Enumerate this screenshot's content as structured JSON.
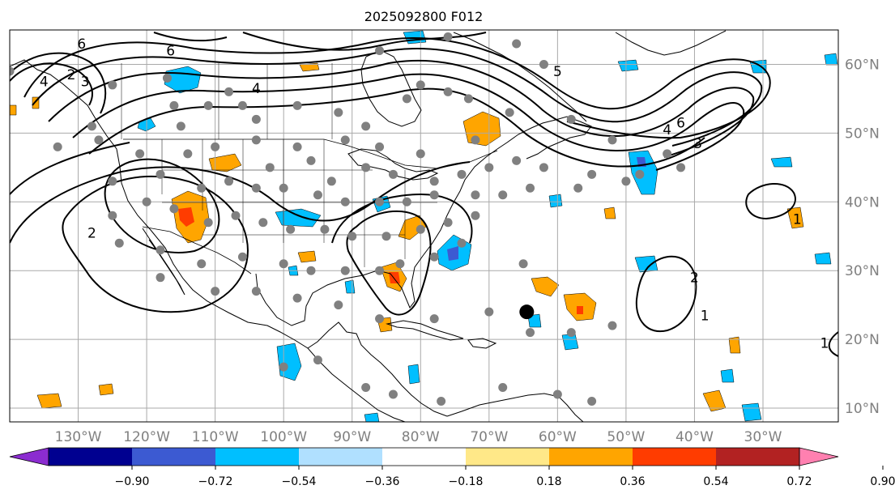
{
  "title": "2025092800 F012",
  "map": {
    "lon_range": [
      -140,
      -19
    ],
    "lat_range": [
      8,
      65
    ],
    "lon_ticks": [
      {
        "value": -130,
        "label": "130°W"
      },
      {
        "value": -120,
        "label": "120°W"
      },
      {
        "value": -110,
        "label": "110°W"
      },
      {
        "value": -100,
        "label": "100°W"
      },
      {
        "value": -90,
        "label": "90°W"
      },
      {
        "value": -80,
        "label": "80°W"
      },
      {
        "value": -70,
        "label": "70°W"
      },
      {
        "value": -60,
        "label": "60°W"
      },
      {
        "value": -50,
        "label": "50°W"
      },
      {
        "value": -40,
        "label": "40°W"
      },
      {
        "value": -30,
        "label": "30°W"
      }
    ],
    "lat_ticks": [
      {
        "value": 60,
        "label": "60°N"
      },
      {
        "value": 50,
        "label": "50°N"
      },
      {
        "value": 40,
        "label": "40°N"
      },
      {
        "value": 30,
        "label": "30°N"
      },
      {
        "value": 20,
        "label": "20°N"
      },
      {
        "value": 10,
        "label": "10°N"
      }
    ],
    "grid": true,
    "grid_color": "#a9a9a9",
    "contour_labels": [
      {
        "text": "6",
        "lon": -129.5,
        "lat": 63.0
      },
      {
        "text": "6",
        "lon": -116.5,
        "lat": 62.0
      },
      {
        "text": "4",
        "lon": -135.0,
        "lat": 57.5
      },
      {
        "text": "2",
        "lon": -131.0,
        "lat": 58.5
      },
      {
        "text": "3",
        "lon": -129.0,
        "lat": 57.5
      },
      {
        "text": "4",
        "lon": -104.0,
        "lat": 56.5
      },
      {
        "text": "5",
        "lon": -60.0,
        "lat": 59.0
      },
      {
        "text": "6",
        "lon": -42.0,
        "lat": 51.5
      },
      {
        "text": "4",
        "lon": -44.0,
        "lat": 50.5
      },
      {
        "text": "3",
        "lon": -39.5,
        "lat": 48.5
      },
      {
        "text": "2",
        "lon": -128.0,
        "lat": 35.5
      },
      {
        "text": "2",
        "lon": -40.0,
        "lat": 29.0
      },
      {
        "text": "1",
        "lon": -25.0,
        "lat": 37.5
      },
      {
        "text": "1",
        "lon": -38.5,
        "lat": 23.5
      },
      {
        "text": "1",
        "lon": -21.0,
        "lat": 19.5
      }
    ],
    "stations_gray": [
      [
        -140,
        59
      ],
      [
        -125,
        57
      ],
      [
        -117,
        58
      ],
      [
        -108,
        56
      ],
      [
        -128,
        51
      ],
      [
        -116,
        54
      ],
      [
        -115,
        51
      ],
      [
        -111,
        54
      ],
      [
        -106,
        54
      ],
      [
        -104,
        52
      ],
      [
        -98,
        54
      ],
      [
        -92,
        53
      ],
      [
        -88,
        51
      ],
      [
        -82,
        55
      ],
      [
        -80,
        57
      ],
      [
        -76,
        56
      ],
      [
        -73,
        55
      ],
      [
        -66,
        63
      ],
      [
        -62,
        60
      ],
      [
        -86,
        62
      ],
      [
        -76,
        64
      ],
      [
        -67,
        53
      ],
      [
        -58,
        52
      ],
      [
        -52,
        49
      ],
      [
        -44,
        47
      ],
      [
        -72,
        49
      ],
      [
        -98,
        48
      ],
      [
        -91,
        49
      ],
      [
        -86,
        48
      ],
      [
        -80,
        47
      ],
      [
        -133,
        48
      ],
      [
        -127,
        49
      ],
      [
        -121,
        47
      ],
      [
        -114,
        47
      ],
      [
        -110,
        48
      ],
      [
        -104,
        49
      ],
      [
        -102,
        45
      ],
      [
        -96,
        46
      ],
      [
        -93,
        43
      ],
      [
        -88,
        45
      ],
      [
        -84,
        44
      ],
      [
        -78,
        43
      ],
      [
        -74,
        44
      ],
      [
        -70,
        45
      ],
      [
        -66,
        46
      ],
      [
        -62,
        45
      ],
      [
        -55,
        44
      ],
      [
        -48,
        44
      ],
      [
        -42,
        45
      ],
      [
        -125,
        43
      ],
      [
        -118,
        44
      ],
      [
        -112,
        42
      ],
      [
        -108,
        43
      ],
      [
        -104,
        42
      ],
      [
        -100,
        42
      ],
      [
        -95,
        41
      ],
      [
        -91,
        40
      ],
      [
        -86,
        40
      ],
      [
        -82,
        40
      ],
      [
        -78,
        41
      ],
      [
        -72,
        41
      ],
      [
        -68,
        41
      ],
      [
        -64,
        42
      ],
      [
        -57,
        42
      ],
      [
        -50,
        43
      ],
      [
        -125,
        38
      ],
      [
        -120,
        40
      ],
      [
        -116,
        39
      ],
      [
        -111,
        37
      ],
      [
        -107,
        38
      ],
      [
        -103,
        37
      ],
      [
        -99,
        36
      ],
      [
        -94,
        36
      ],
      [
        -90,
        35
      ],
      [
        -85,
        35
      ],
      [
        -80,
        36
      ],
      [
        -76,
        37
      ],
      [
        -72,
        38
      ],
      [
        -124,
        34
      ],
      [
        -118,
        33
      ],
      [
        -112,
        31
      ],
      [
        -106,
        32
      ],
      [
        -100,
        31
      ],
      [
        -96,
        30
      ],
      [
        -91,
        30
      ],
      [
        -86,
        30
      ],
      [
        -83,
        31
      ],
      [
        -78,
        32
      ],
      [
        -74,
        34
      ],
      [
        -118,
        29
      ],
      [
        -110,
        27
      ],
      [
        -104,
        27
      ],
      [
        -98,
        26
      ],
      [
        -92,
        25
      ],
      [
        -86,
        23
      ],
      [
        -78,
        23
      ],
      [
        -70,
        24
      ],
      [
        -64,
        21
      ],
      [
        -58,
        21
      ],
      [
        -52,
        22
      ],
      [
        -65,
        31
      ],
      [
        -100,
        16
      ],
      [
        -95,
        17
      ],
      [
        -88,
        13
      ],
      [
        -84,
        12
      ],
      [
        -77,
        11
      ],
      [
        -68,
        13
      ],
      [
        -60,
        12
      ],
      [
        -55,
        11
      ]
    ],
    "stations_black": [
      [
        -64.5,
        24.0
      ]
    ],
    "fill_colors": {
      "pos_1": "#ffe888",
      "pos_2": "#ffa500",
      "pos_3": "#ff3c00",
      "neg_2": "#00bfff",
      "neg_3": "#3c5ad2"
    }
  },
  "colorbar": {
    "levels": [
      "-0.90",
      "-0.72",
      "-0.54",
      "-0.36",
      "-0.18",
      "0.18",
      "0.36",
      "0.54",
      "0.72",
      "0.90"
    ],
    "colors": [
      "#8b2cd0",
      "#000090",
      "#3c5ad2",
      "#00bfff",
      "#b0e0ff",
      "#ffffff",
      "#ffe888",
      "#ffa500",
      "#ff3c00",
      "#b22222",
      "#ff80b0"
    ]
  }
}
